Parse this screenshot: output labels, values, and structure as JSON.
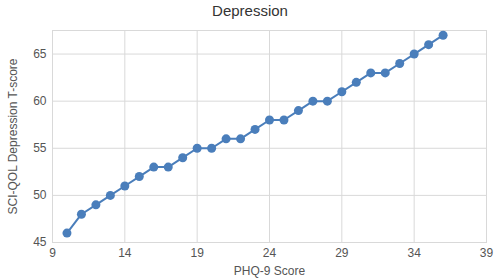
{
  "chart_data": {
    "type": "line",
    "title": "Depression",
    "x_label": "PHQ-9 Score",
    "y_label": "SCI-QOL Depression T-score",
    "x": [
      10,
      11,
      12,
      13,
      14,
      15,
      16,
      17,
      18,
      19,
      20,
      21,
      22,
      23,
      24,
      25,
      26,
      27,
      28,
      29,
      30,
      31,
      32,
      33,
      34,
      35,
      36
    ],
    "values": [
      46,
      48,
      49,
      50,
      51,
      52,
      53,
      53,
      54,
      55,
      55,
      56,
      56,
      57,
      58,
      58,
      59,
      60,
      60,
      61,
      62,
      63,
      63,
      64,
      65,
      66,
      67
    ],
    "color": "#4a7ebb",
    "marker": "circle",
    "xlim": [
      9,
      39
    ],
    "xticks": [
      9,
      14,
      19,
      24,
      29,
      34,
      39
    ],
    "ylim": [
      45,
      67.5
    ],
    "yticks": [
      45,
      50,
      55,
      60,
      65
    ],
    "grid": true
  }
}
